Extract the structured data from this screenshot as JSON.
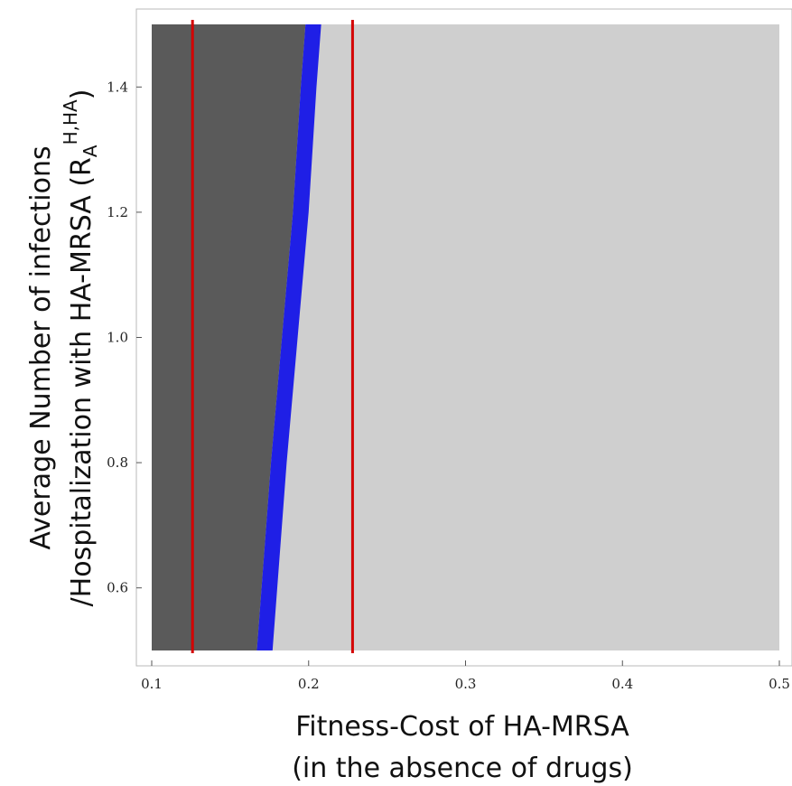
{
  "chart_data": {
    "type": "heatmap",
    "title": "",
    "xlabel": "Fitness-Cost of HA-MRSA",
    "xlabel_sub": "(in the absence of drugs)",
    "ylabel": {
      "line1": "Average Number of infections",
      "line2_prefix": "/Hospitalization with HA-MRSA (R",
      "line2_sub": "A",
      "line2_sup": "H,HA",
      "line2_suffix": ")"
    },
    "xlim": [
      0.1,
      0.5
    ],
    "ylim": [
      0.5,
      1.5
    ],
    "x_ticks": [
      {
        "value": 0.1,
        "label": "0.1"
      },
      {
        "value": 0.2,
        "label": "0.2"
      },
      {
        "value": 0.3,
        "label": "0.3"
      },
      {
        "value": 0.4,
        "label": "0.4"
      },
      {
        "value": 0.5,
        "label": "0.5"
      }
    ],
    "y_ticks": [
      {
        "value": 0.6,
        "label": "0.6"
      },
      {
        "value": 0.8,
        "label": "0.8"
      },
      {
        "value": 1.0,
        "label": "1.0"
      },
      {
        "value": 1.2,
        "label": "1.2"
      },
      {
        "value": 1.4,
        "label": "1.4"
      }
    ],
    "regions": {
      "dark_color": "#5a5a5a",
      "light_color": "#cfcfcf",
      "boundary_color": "#1f1fe6",
      "boundary": [
        {
          "y": 0.5,
          "x": 0.167
        },
        {
          "y": 0.8,
          "x": 0.176
        },
        {
          "y": 1.0,
          "x": 0.183
        },
        {
          "y": 1.2,
          "x": 0.19
        },
        {
          "y": 1.4,
          "x": 0.195
        },
        {
          "y": 1.5,
          "x": 0.198
        }
      ],
      "boundary_width": 0.01
    },
    "vlines": [
      {
        "x": 0.126,
        "color": "#d40000"
      },
      {
        "x": 0.228,
        "color": "#d40000"
      }
    ],
    "grid": false
  }
}
